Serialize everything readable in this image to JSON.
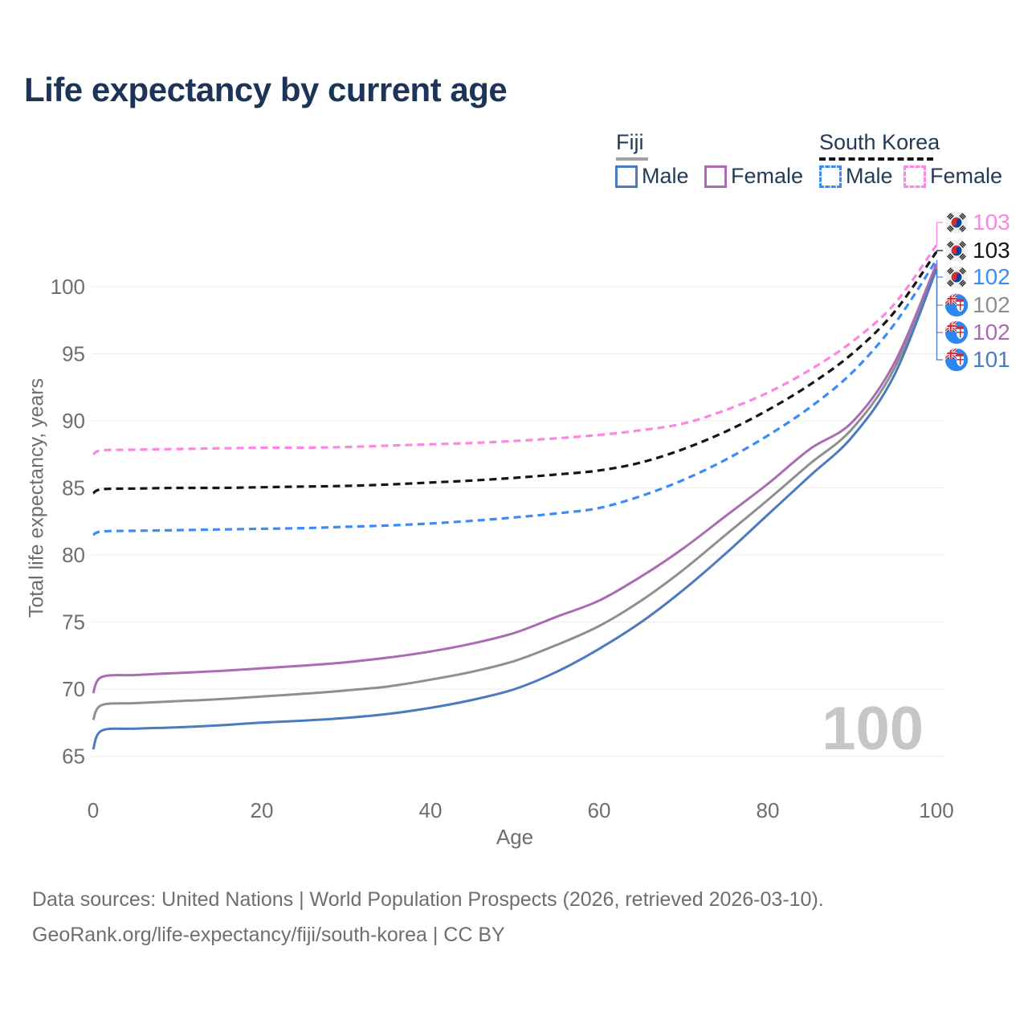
{
  "title": "Life expectancy by current age",
  "legend": {
    "fiji": {
      "label": "Fiji",
      "male": "Male",
      "female": "Female"
    },
    "south_korea": {
      "label": "South Korea",
      "male": "Male",
      "female": "Female"
    }
  },
  "watermark_age": "100",
  "footer": {
    "line1": "Data sources: United Nations | World Population Prospects (2026, retrieved 2026-03-10).",
    "line2": "GeoRank.org/life-expectancy/fiji/south-korea | CC BY"
  },
  "colors": {
    "fiji_male": "#4a7bbf",
    "fiji_female": "#aa6bb3",
    "fiji_total": "#8f8f8f",
    "south_korea_male": "#3d8bf7",
    "south_korea_female": "#ff85e3",
    "south_korea_total": "#141414",
    "title_text": "#1c3457",
    "axis_text": "#6e6e6e",
    "gridline": "#ececec",
    "watermark": "#c6c6c6"
  },
  "chart_data": {
    "type": "line",
    "title": "Life expectancy by current age",
    "xlabel": "Age",
    "ylabel": "Total life expectancy, years",
    "xlim": [
      0,
      100
    ],
    "ylim": [
      65,
      100
    ],
    "xticks": [
      0,
      20,
      40,
      60,
      80,
      100
    ],
    "yticks": [
      65,
      70,
      75,
      80,
      85,
      90,
      95,
      100
    ],
    "grid": "horizontal",
    "legend_position": "top-right",
    "ages": [
      0,
      1,
      5,
      10,
      15,
      20,
      25,
      30,
      35,
      40,
      45,
      50,
      55,
      60,
      65,
      70,
      75,
      80,
      85,
      90,
      95,
      100
    ],
    "series": [
      {
        "name": "South Korea Female",
        "country": "South Korea",
        "sex": "Female",
        "color": "#ff85e3",
        "dashed": true,
        "flag": "kr",
        "end_label": "103",
        "values": [
          87.5,
          87.8,
          87.85,
          87.9,
          87.95,
          88.0,
          88.0,
          88.05,
          88.15,
          88.25,
          88.35,
          88.5,
          88.7,
          88.95,
          89.3,
          89.8,
          90.8,
          92.1,
          93.8,
          95.9,
          98.7,
          103.1
        ]
      },
      {
        "name": "South Korea Total",
        "country": "South Korea",
        "sex": "Both",
        "color": "#141414",
        "dashed": true,
        "flag": "kr",
        "end_label": "103",
        "values": [
          84.6,
          84.9,
          84.95,
          85.0,
          85.0,
          85.05,
          85.1,
          85.15,
          85.25,
          85.4,
          85.55,
          85.75,
          86.0,
          86.3,
          86.9,
          87.9,
          89.2,
          90.8,
          92.7,
          95.0,
          98.1,
          102.6
        ]
      },
      {
        "name": "South Korea Male",
        "country": "South Korea",
        "sex": "Male",
        "color": "#3d8bf7",
        "dashed": true,
        "flag": "kr",
        "end_label": "102",
        "values": [
          81.5,
          81.75,
          81.8,
          81.85,
          81.9,
          81.95,
          82.0,
          82.1,
          82.2,
          82.35,
          82.55,
          82.8,
          83.1,
          83.5,
          84.4,
          85.6,
          87.1,
          88.9,
          91.0,
          93.6,
          97.2,
          102.0
        ]
      },
      {
        "name": "Fiji Total",
        "country": "Fiji",
        "sex": "Both",
        "color": "#8f8f8f",
        "dashed": false,
        "flag": "fj",
        "end_label": "102",
        "values": [
          67.7,
          68.8,
          68.95,
          69.1,
          69.25,
          69.45,
          69.65,
          69.9,
          70.2,
          70.7,
          71.3,
          72.1,
          73.3,
          74.7,
          76.6,
          78.9,
          81.5,
          84.1,
          86.8,
          89.4,
          93.9,
          101.5
        ]
      },
      {
        "name": "Fiji Female",
        "country": "Fiji",
        "sex": "Female",
        "color": "#aa6bb3",
        "dashed": false,
        "flag": "fj",
        "end_label": "102",
        "values": [
          69.7,
          70.9,
          71.05,
          71.2,
          71.35,
          71.55,
          71.75,
          72.0,
          72.35,
          72.8,
          73.4,
          74.2,
          75.4,
          76.6,
          78.4,
          80.5,
          82.9,
          85.3,
          87.9,
          89.9,
          94.3,
          101.7
        ]
      },
      {
        "name": "Fiji Male",
        "country": "Fiji",
        "sex": "Male",
        "color": "#4a7bbf",
        "dashed": false,
        "flag": "fj",
        "end_label": "101",
        "values": [
          65.5,
          66.9,
          67.05,
          67.15,
          67.3,
          67.5,
          67.65,
          67.85,
          68.15,
          68.6,
          69.2,
          70.0,
          71.3,
          73.0,
          75.0,
          77.4,
          80.1,
          83.0,
          85.9,
          88.8,
          93.4,
          101.3
        ]
      }
    ]
  }
}
